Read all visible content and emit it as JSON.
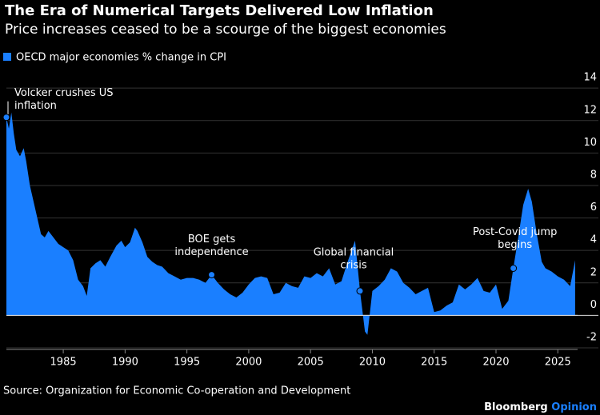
{
  "chart_data": {
    "type": "area",
    "title": "The Era of Numerical Targets Delivered Low Inflation",
    "subtitle": "Price increases ceased to be a scourge of the biggest economies",
    "source": "Source: Organization for Economic Co-operation and Development",
    "brand": [
      "Bloomberg",
      "Opinion"
    ],
    "xlim": [
      1980.4,
      2026.6
    ],
    "xticks": [
      1985,
      1990,
      1995,
      2000,
      2005,
      2010,
      2015,
      2020,
      2025
    ],
    "ylim": [
      -2.1,
      14.6
    ],
    "yticks": [
      -2,
      0,
      2,
      4,
      6,
      8,
      10,
      12,
      14
    ],
    "grid": true,
    "x": [
      1980.4,
      1980.6,
      1980.8,
      1981.0,
      1981.2,
      1981.5,
      1981.8,
      1982.0,
      1982.3,
      1982.6,
      1982.9,
      1983.2,
      1983.5,
      1983.8,
      1984.2,
      1984.6,
      1985.0,
      1985.4,
      1985.8,
      1986.2,
      1986.6,
      1986.9,
      1987.2,
      1987.6,
      1988.0,
      1988.4,
      1988.8,
      1989.3,
      1989.7,
      1990.0,
      1990.4,
      1990.8,
      1991.0,
      1991.4,
      1991.8,
      1992.2,
      1992.6,
      1993.0,
      1993.5,
      1994.0,
      1994.5,
      1995.0,
      1995.5,
      1996.0,
      1996.5,
      1997.0,
      1997.5,
      1998.0,
      1998.5,
      1999.0,
      1999.5,
      2000.0,
      2000.5,
      2001.0,
      2001.5,
      2002.0,
      2002.5,
      2003.0,
      2003.5,
      2004.0,
      2004.5,
      2005.0,
      2005.5,
      2006.0,
      2006.5,
      2007.0,
      2007.5,
      2008.0,
      2008.6,
      2009.0,
      2009.4,
      2009.6,
      2010.0,
      2010.5,
      2011.0,
      2011.5,
      2012.0,
      2012.5,
      2013.0,
      2013.5,
      2014.0,
      2014.5,
      2015.0,
      2015.5,
      2016.0,
      2016.5,
      2017.0,
      2017.5,
      2018.0,
      2018.5,
      2019.0,
      2019.5,
      2020.0,
      2020.5,
      2021.0,
      2021.4,
      2021.8,
      2022.2,
      2022.6,
      2022.9,
      2023.3,
      2023.7,
      2024.0,
      2024.5,
      2025.0,
      2025.5,
      2026.0,
      2026.4
    ],
    "series": [
      {
        "name": "OECD major economies % change in CPI",
        "color": "#1a7fff",
        "values": [
          12.2,
          11.5,
          12.5,
          11.2,
          10.2,
          9.8,
          10.3,
          9.5,
          8.0,
          7.0,
          6.0,
          5.0,
          4.8,
          5.2,
          4.8,
          4.4,
          4.2,
          4.0,
          3.4,
          2.2,
          1.8,
          1.2,
          2.9,
          3.2,
          3.4,
          3.0,
          3.6,
          4.3,
          4.6,
          4.2,
          4.5,
          5.4,
          5.2,
          4.5,
          3.6,
          3.3,
          3.1,
          3.0,
          2.6,
          2.4,
          2.2,
          2.3,
          2.3,
          2.2,
          2.0,
          2.5,
          2.0,
          1.6,
          1.3,
          1.1,
          1.4,
          1.9,
          2.3,
          2.4,
          2.3,
          1.3,
          1.4,
          2.0,
          1.8,
          1.7,
          2.4,
          2.3,
          2.6,
          2.4,
          2.9,
          1.9,
          2.1,
          3.3,
          4.6,
          1.5,
          -1.0,
          -1.2,
          1.5,
          1.8,
          2.2,
          2.9,
          2.7,
          2.0,
          1.7,
          1.3,
          1.5,
          1.7,
          0.2,
          0.3,
          0.6,
          0.8,
          1.9,
          1.6,
          1.9,
          2.3,
          1.5,
          1.4,
          1.9,
          0.4,
          0.9,
          2.9,
          4.8,
          6.8,
          7.8,
          7.0,
          5.0,
          3.3,
          2.9,
          2.7,
          2.4,
          2.2,
          1.8,
          3.4
        ]
      }
    ],
    "annotations": [
      {
        "lines": [
          "Volcker crushes US",
          "inflation"
        ],
        "x": 1980.4,
        "y": 12.2
      },
      {
        "lines": [
          "BOE gets",
          "independence"
        ],
        "x": 1997.0,
        "y": 2.5
      },
      {
        "lines": [
          "Global financial",
          "crisis"
        ],
        "x": 2009.0,
        "y": 1.5
      },
      {
        "lines": [
          "Post-Covid jump",
          "begins"
        ],
        "x": 2021.4,
        "y": 2.9
      }
    ]
  }
}
